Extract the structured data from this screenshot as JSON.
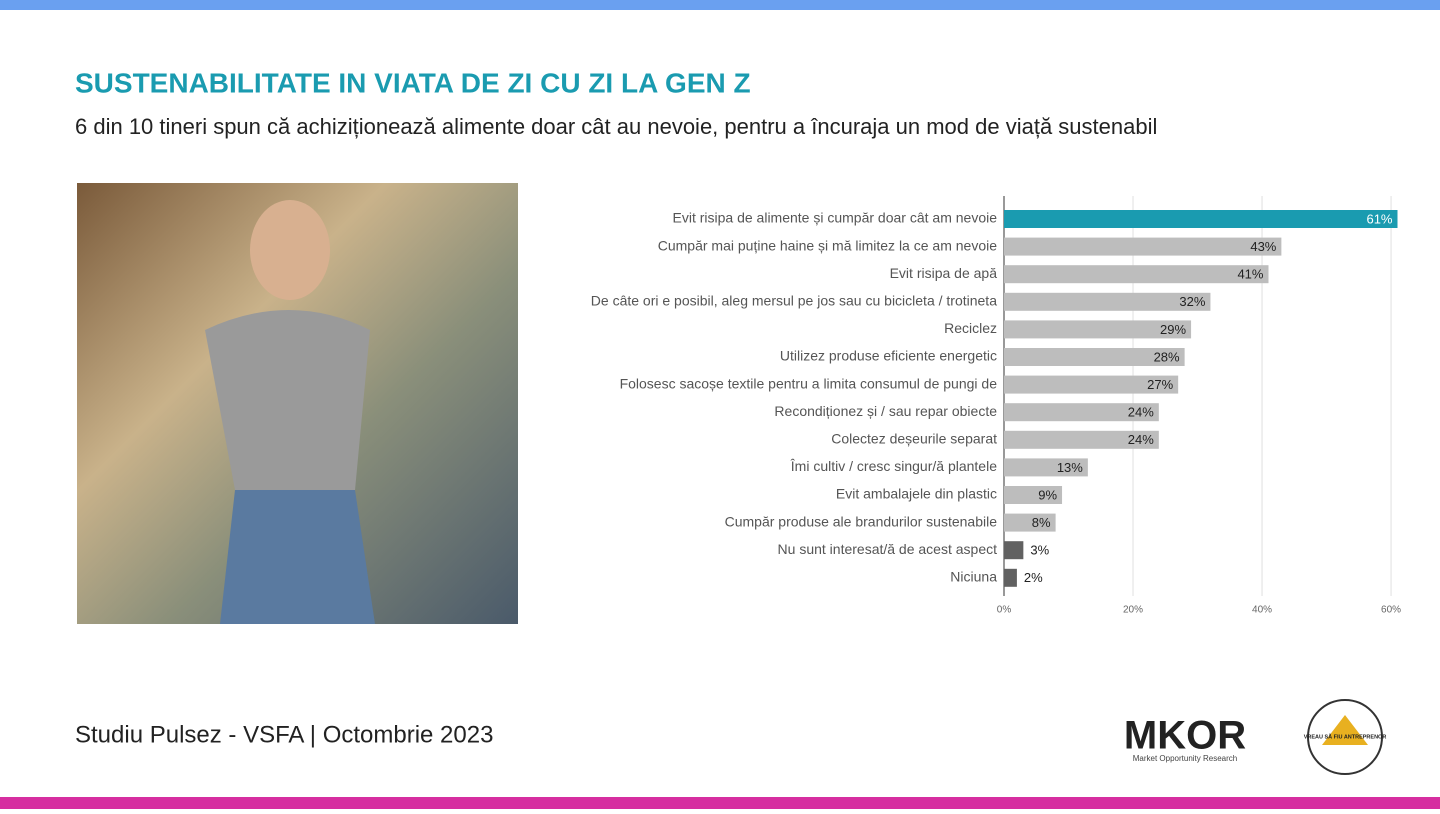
{
  "header": {
    "title": "SUSTENABILITATE IN VIATA DE ZI CU ZI LA GEN Z",
    "subtitle": "6 din 10 tineri spun că achiziționează alimente doar cât au nevoie, pentru a încuraja un mod de viață sustenabil"
  },
  "chart_data": {
    "type": "hbar",
    "categories": [
      "Evit risipa de alimente și cumpăr doar cât am nevoie",
      "Cumpăr mai puține haine și mă limitez la ce am nevoie",
      "Evit risipa de apă",
      "De câte ori e posibil, aleg mersul pe jos sau cu bicicleta / trotineta",
      "Reciclez",
      "Utilizez produse eficiente energetic",
      "Folosesc sacoșe textile pentru a limita consumul de pungi de",
      "Recondiționez și / sau repar obiecte",
      "Colectez deșeurile separat",
      "Îmi cultiv / cresc singur/ă plantele",
      "Evit ambalajele din plastic",
      "Cumpăr produse ale brandurilor sustenabile",
      "Nu sunt interesat/ă de acest aspect",
      "Niciuna"
    ],
    "values": [
      61,
      43,
      41,
      32,
      29,
      28,
      27,
      24,
      24,
      13,
      9,
      8,
      3,
      2
    ],
    "value_labels": [
      "61%",
      "43%",
      "41%",
      "32%",
      "29%",
      "28%",
      "27%",
      "24%",
      "24%",
      "13%",
      "9%",
      "8%",
      "3%",
      "2%"
    ],
    "colors": [
      "#1a9bb0",
      "#bdbdbd",
      "#bdbdbd",
      "#bdbdbd",
      "#bdbdbd",
      "#bdbdbd",
      "#bdbdbd",
      "#bdbdbd",
      "#bdbdbd",
      "#bdbdbd",
      "#bdbdbd",
      "#bdbdbd",
      "#616161",
      "#616161"
    ],
    "xlim": [
      0,
      61
    ],
    "xticks": [
      {
        "value": 0,
        "label": "0%"
      },
      {
        "value": 20,
        "label": "20%"
      },
      {
        "value": 40,
        "label": "40%"
      },
      {
        "value": 60,
        "label": "60%"
      }
    ],
    "grid": true
  },
  "footer": {
    "source": "Studiu Pulsez - VSFA | Octombrie 2023",
    "logo1": "MKOR",
    "logo1_sub": "Market Opportunity Research",
    "logo2": "VREAU SĂ FIU ANTREPRENOR"
  }
}
